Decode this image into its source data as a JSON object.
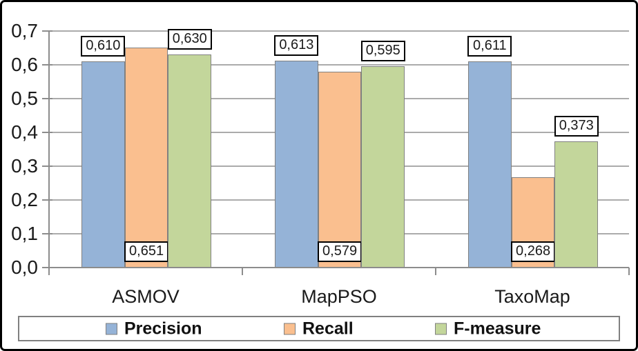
{
  "chart_data": {
    "type": "bar",
    "title": "",
    "categories": [
      "ASMOV",
      "MapPSO",
      "TaxoMap"
    ],
    "series": [
      {
        "name": "Precision",
        "color": "#95B3D7",
        "values": [
          0.61,
          0.613,
          0.611
        ],
        "data_labels": [
          "0,610",
          "0,613",
          "0,611"
        ],
        "data_label_position": "above-bar"
      },
      {
        "name": "Recall",
        "color": "#FABF8F",
        "values": [
          0.651,
          0.579,
          0.268
        ],
        "data_labels": [
          "0,651",
          "0,579",
          "0,268"
        ],
        "data_label_position": "inside-bar-base"
      },
      {
        "name": "F-measure",
        "color": "#C3D69B",
        "values": [
          0.63,
          0.595,
          0.373
        ],
        "data_labels": [
          "0,630",
          "0,595",
          "0,373"
        ],
        "data_label_position": "above-bar"
      }
    ],
    "ylim": [
      0,
      0.7
    ],
    "ytick_step": 0.1,
    "ytick_labels": [
      "0,0",
      "0,1",
      "0,2",
      "0,3",
      "0,4",
      "0,5",
      "0,6",
      "0,7"
    ],
    "grid": true,
    "legend_position": "bottom",
    "decimal_separator": ","
  },
  "colors": {
    "bar_border": "#808080",
    "gridline": "#ABABAB",
    "axis": "#8C8C8C",
    "text": "#1a1a1a",
    "data_label_bg": "#FFFFFF",
    "data_label_border": "#000000",
    "legend_border": "#808080",
    "frame": "#000000",
    "background": "#FFFFFF"
  }
}
